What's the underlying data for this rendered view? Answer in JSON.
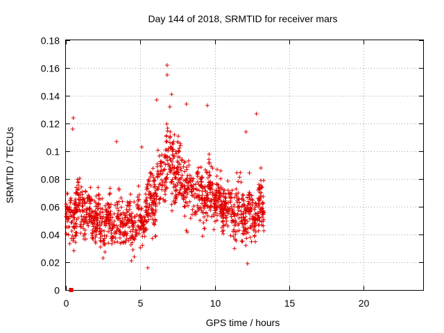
{
  "chart_data": {
    "type": "scatter",
    "title": "Day 144 of 2018, SRMTID for receiver mars",
    "xlabel": "GPS time / hours",
    "ylabel": "SRMTID / TECUs",
    "xlim": [
      0,
      24
    ],
    "ylim": [
      0,
      0.18
    ],
    "xticks": [
      "0",
      "5",
      "10",
      "15",
      "20"
    ],
    "xtick_values": [
      0,
      5,
      10,
      15,
      20
    ],
    "yticks": [
      "0",
      "0.02",
      "0.04",
      "0.06",
      "0.08",
      "0.1",
      "0.12",
      "0.14",
      "0.16",
      "0.18"
    ],
    "ytick_values": [
      0,
      0.02,
      0.04,
      0.06,
      0.08,
      0.1,
      0.12,
      0.14,
      0.16,
      0.18
    ],
    "grid": true,
    "marker": "plus",
    "color": "#e00000",
    "series": [
      {
        "name": "SRMTID",
        "x_range": [
          0,
          13.3
        ],
        "y_range": [
          0.015,
          0.162
        ],
        "envelope": [
          {
            "x": 0,
            "y": 0.05,
            "spread": 0.013
          },
          {
            "x": 1,
            "y": 0.06,
            "spread": 0.014
          },
          {
            "x": 2,
            "y": 0.05,
            "spread": 0.012
          },
          {
            "x": 3,
            "y": 0.049,
            "spread": 0.012
          },
          {
            "x": 4,
            "y": 0.046,
            "spread": 0.013
          },
          {
            "x": 5,
            "y": 0.05,
            "spread": 0.014
          },
          {
            "x": 6,
            "y": 0.07,
            "spread": 0.016
          },
          {
            "x": 7,
            "y": 0.095,
            "spread": 0.02
          },
          {
            "x": 8,
            "y": 0.075,
            "spread": 0.016
          },
          {
            "x": 9,
            "y": 0.068,
            "spread": 0.015
          },
          {
            "x": 10,
            "y": 0.068,
            "spread": 0.014
          },
          {
            "x": 11,
            "y": 0.06,
            "spread": 0.014
          },
          {
            "x": 12,
            "y": 0.055,
            "spread": 0.015
          },
          {
            "x": 13.3,
            "y": 0.058,
            "spread": 0.014
          }
        ],
        "highlights": [
          {
            "x": 0.5,
            "y": 0.124
          },
          {
            "x": 0.45,
            "y": 0.116
          },
          {
            "x": 6.8,
            "y": 0.162
          },
          {
            "x": 6.8,
            "y": 0.155
          },
          {
            "x": 7.1,
            "y": 0.141
          },
          {
            "x": 6.1,
            "y": 0.137
          },
          {
            "x": 9.5,
            "y": 0.133
          },
          {
            "x": 8.1,
            "y": 0.134
          },
          {
            "x": 12.8,
            "y": 0.127
          },
          {
            "x": 12.1,
            "y": 0.114
          },
          {
            "x": 3.4,
            "y": 0.107
          },
          {
            "x": 5.1,
            "y": 0.103
          },
          {
            "x": 5.5,
            "y": 0.016
          },
          {
            "x": 12.2,
            "y": 0.019
          },
          {
            "x": 4.4,
            "y": 0.021
          },
          {
            "x": 2.5,
            "y": 0.023
          }
        ],
        "count": 1500
      },
      {
        "name": "zero marker",
        "points": [
          {
            "x": 0.35,
            "y": 0.0
          }
        ],
        "marker": "square"
      }
    ]
  }
}
